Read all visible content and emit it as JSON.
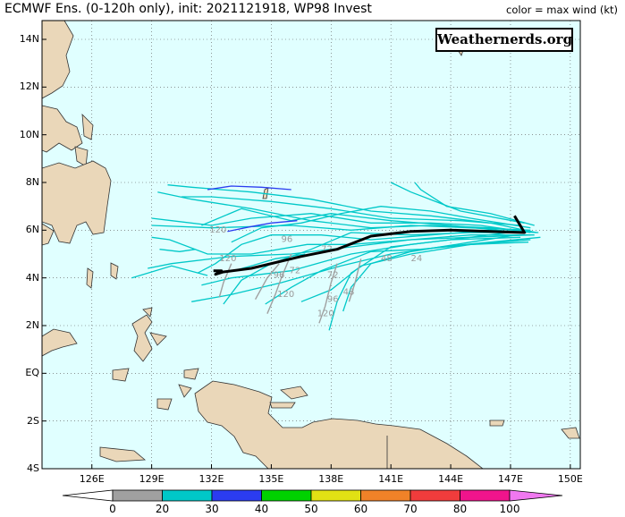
{
  "header": {
    "title": "ECMWF Ens. (0-120h only), init: 2021121918, WP98 Invest",
    "legend_note": "color = max wind (kt)"
  },
  "watermark": "Weathernerds.org",
  "axes": {
    "lat_labels": [
      "14N",
      "12N",
      "10N",
      "8N",
      "6N",
      "4N",
      "2N",
      "EQ",
      "2S",
      "4S"
    ],
    "lon_labels": [
      "126E",
      "129E",
      "132E",
      "135E",
      "138E",
      "141E",
      "144E",
      "147E",
      "150E"
    ]
  },
  "colorbar": {
    "ticks": [
      "0",
      "20",
      "30",
      "40",
      "50",
      "60",
      "70",
      "80",
      "100"
    ],
    "bins": [
      {
        "from": 0,
        "to": 20,
        "color": "#a0a0a0"
      },
      {
        "from": 20,
        "to": 30,
        "color": "#00c8c8"
      },
      {
        "from": 30,
        "to": 40,
        "color": "#2b3cf0"
      },
      {
        "from": 40,
        "to": 50,
        "color": "#00d200"
      },
      {
        "from": 50,
        "to": 60,
        "color": "#e1e114"
      },
      {
        "from": 60,
        "to": 70,
        "color": "#f08228"
      },
      {
        "from": 70,
        "to": 80,
        "color": "#f03c3c"
      },
      {
        "from": 80,
        "to": 100,
        "color": "#f0148c"
      },
      {
        "from": 100,
        "to": 999,
        "color": "#f078f0"
      }
    ]
  },
  "colors": {
    "ocean": "#e0ffff",
    "land": "#ead7b9",
    "mean_track": "#000000",
    "member_low": "#00c8c8",
    "member_mid": "#2b3cf0",
    "member_weak": "#a0a0a0"
  },
  "ensemble_mean_track": [
    [
      147.2,
      6.6
    ],
    [
      147.7,
      5.9
    ],
    [
      146.0,
      5.95
    ],
    [
      144.0,
      6.0
    ],
    [
      142.0,
      5.95
    ],
    [
      140.0,
      5.75
    ],
    [
      138.3,
      5.2
    ],
    [
      136.5,
      4.9
    ],
    [
      134.0,
      4.4
    ],
    [
      132.6,
      4.25
    ],
    [
      132.2,
      4.15
    ],
    [
      132.5,
      4.3
    ],
    [
      132.1,
      4.3
    ]
  ],
  "forecast_hour_labels": [
    {
      "text": "120",
      "lon": 131.9,
      "lat": 5.9
    },
    {
      "text": "96",
      "lon": 135.5,
      "lat": 5.5
    },
    {
      "text": "120",
      "lon": 132.4,
      "lat": 4.7
    },
    {
      "text": "96",
      "lon": 135.1,
      "lat": 4.0
    },
    {
      "text": "72",
      "lon": 135.9,
      "lat": 4.2
    },
    {
      "text": "120",
      "lon": 135.3,
      "lat": 3.2
    },
    {
      "text": "72",
      "lon": 137.8,
      "lat": 4.0
    },
    {
      "text": "48",
      "lon": 138.6,
      "lat": 3.3
    },
    {
      "text": "96",
      "lon": 137.8,
      "lat": 3.0
    },
    {
      "text": "120",
      "lon": 137.3,
      "lat": 2.4
    },
    {
      "text": "24",
      "lon": 142.0,
      "lat": 4.7
    },
    {
      "text": "48",
      "lon": 140.5,
      "lat": 4.7
    },
    {
      "text": "72",
      "lon": 137.5,
      "lat": 5.1
    }
  ],
  "member_tracks": [
    {
      "cat": "low",
      "pts": [
        [
          148.3,
          5.9
        ],
        [
          146,
          6.1
        ],
        [
          143,
          6.2
        ],
        [
          140,
          6.1
        ],
        [
          137,
          6.4
        ],
        [
          134,
          6.9
        ],
        [
          131,
          7.3
        ],
        [
          129.3,
          7.6
        ]
      ]
    },
    {
      "cat": "low",
      "pts": [
        [
          148.3,
          5.9
        ],
        [
          146,
          6.3
        ],
        [
          143,
          6.6
        ],
        [
          140,
          6.8
        ],
        [
          137,
          7.3
        ],
        [
          134,
          7.6
        ],
        [
          131,
          7.8
        ],
        [
          129.8,
          7.9
        ]
      ]
    },
    {
      "cat": "low",
      "pts": [
        [
          148,
          6
        ],
        [
          145,
          6.1
        ],
        [
          142,
          6.2
        ],
        [
          139,
          6.0
        ],
        [
          136,
          6.2
        ],
        [
          132,
          6.1
        ],
        [
          129,
          6.2
        ]
      ]
    },
    {
      "cat": "low",
      "pts": [
        [
          148.2,
          5.8
        ],
        [
          145,
          5.8
        ],
        [
          142,
          5.6
        ],
        [
          139,
          5.3
        ],
        [
          136,
          5.0
        ],
        [
          133,
          4.9
        ],
        [
          130,
          4.6
        ],
        [
          128.8,
          4.4
        ]
      ]
    },
    {
      "cat": "low",
      "pts": [
        [
          148,
          5.8
        ],
        [
          145,
          5.7
        ],
        [
          142,
          5.4
        ],
        [
          139,
          5.0
        ],
        [
          136,
          4.3
        ],
        [
          133,
          4.0
        ],
        [
          131.5,
          3.7
        ]
      ]
    },
    {
      "cat": "low",
      "pts": [
        [
          148,
          5.6
        ],
        [
          145,
          5.4
        ],
        [
          142,
          5.0
        ],
        [
          139.5,
          4.5
        ],
        [
          138,
          3.5
        ],
        [
          136.5,
          3.0
        ]
      ]
    },
    {
      "cat": "low",
      "pts": [
        [
          147.5,
          5.7
        ],
        [
          144,
          5.6
        ],
        [
          141,
          5.3
        ],
        [
          139,
          4.2
        ],
        [
          138.3,
          3.0
        ],
        [
          137.9,
          1.8
        ]
      ]
    },
    {
      "cat": "low",
      "pts": [
        [
          147.8,
          5.9
        ],
        [
          145,
          5.9
        ],
        [
          142,
          5.8
        ],
        [
          139,
          5.9
        ],
        [
          137,
          5.2
        ],
        [
          135,
          4.6
        ],
        [
          133.5,
          3.9
        ],
        [
          132.6,
          2.9
        ]
      ]
    },
    {
      "cat": "low",
      "pts": [
        [
          147.5,
          6.2
        ],
        [
          144.5,
          6.4
        ],
        [
          141,
          6.5
        ],
        [
          138,
          6.9
        ],
        [
          135,
          7.2
        ],
        [
          132,
          7.4
        ],
        [
          130.5,
          7.4
        ]
      ]
    },
    {
      "cat": "low",
      "pts": [
        [
          148,
          6.1
        ],
        [
          145,
          6.5
        ],
        [
          143,
          6.8
        ],
        [
          140.5,
          7.0
        ],
        [
          138.5,
          6.7
        ],
        [
          136.5,
          6.3
        ],
        [
          134.5,
          6.1
        ],
        [
          133,
          5.5
        ]
      ]
    },
    {
      "cat": "low",
      "pts": [
        [
          147.3,
          5.8
        ],
        [
          145,
          5.5
        ],
        [
          142,
          5.1
        ],
        [
          140,
          4.6
        ],
        [
          139,
          3.6
        ],
        [
          138.6,
          2.6
        ]
      ]
    },
    {
      "cat": "low",
      "pts": [
        [
          148.5,
          5.7
        ],
        [
          146,
          5.5
        ],
        [
          143.5,
          5.3
        ],
        [
          141,
          5.0
        ],
        [
          138.5,
          4.5
        ],
        [
          135.5,
          3.8
        ],
        [
          133,
          3.3
        ],
        [
          131,
          3.0
        ]
      ]
    },
    {
      "cat": "low",
      "pts": [
        [
          148,
          5.9
        ],
        [
          145.5,
          6.2
        ],
        [
          143,
          6.3
        ],
        [
          140,
          6.3
        ],
        [
          137,
          6.7
        ],
        [
          134,
          6.5
        ],
        [
          132,
          6.2
        ],
        [
          130,
          6.4
        ],
        [
          129,
          6.5
        ]
      ]
    },
    {
      "cat": "low",
      "pts": [
        [
          147.7,
          6.3
        ],
        [
          144.5,
          6.8
        ],
        [
          142,
          7.6
        ],
        [
          141,
          8.0
        ]
      ]
    },
    {
      "cat": "low",
      "pts": [
        [
          148.4,
          5.9
        ],
        [
          146,
          6.0
        ],
        [
          143,
          5.8
        ],
        [
          140,
          5.6
        ],
        [
          137.5,
          5.8
        ],
        [
          135,
          5.8
        ],
        [
          133.5,
          5.4
        ],
        [
          132.2,
          4.6
        ],
        [
          131.3,
          4.2
        ]
      ]
    },
    {
      "cat": "low",
      "pts": [
        [
          147.9,
          5.5
        ],
        [
          145,
          5.4
        ],
        [
          142.5,
          5.2
        ],
        [
          140,
          5.1
        ],
        [
          137.5,
          4.3
        ],
        [
          136,
          3.6
        ],
        [
          134.7,
          2.9
        ]
      ]
    },
    {
      "cat": "low",
      "pts": [
        [
          148.2,
          6.2
        ],
        [
          146,
          6.7
        ],
        [
          143.8,
          7.0
        ],
        [
          142.5,
          7.7
        ],
        [
          142.2,
          8.0
        ]
      ]
    },
    {
      "cat": "low",
      "pts": [
        [
          147.5,
          5.9
        ],
        [
          144,
          6.2
        ],
        [
          141,
          6.4
        ],
        [
          138,
          6.7
        ],
        [
          136,
          6.4
        ],
        [
          133.5,
          6.9
        ],
        [
          131.5,
          6.2
        ]
      ]
    },
    {
      "cat": "low",
      "pts": [
        [
          147.8,
          6.0
        ],
        [
          145,
          5.7
        ],
        [
          142,
          5.6
        ],
        [
          139,
          5.4
        ],
        [
          136.8,
          5.4
        ],
        [
          134,
          5.0
        ],
        [
          131.8,
          5.0
        ],
        [
          129.9,
          5.6
        ],
        [
          129.0,
          5.7
        ]
      ]
    },
    {
      "cat": "low",
      "pts": [
        [
          131.2,
          5.2
        ],
        [
          130.4,
          5.1
        ],
        [
          129.4,
          5.2
        ]
      ]
    },
    {
      "cat": "low",
      "pts": [
        [
          128.0,
          4.0
        ],
        [
          130.0,
          4.5
        ],
        [
          131.8,
          4.1
        ]
      ]
    },
    {
      "cat": "low",
      "pts": [
        [
          136.7,
          5.0
        ],
        [
          135.2,
          4.8
        ],
        [
          134.0,
          4.5
        ],
        [
          133.1,
          4.3
        ]
      ]
    },
    {
      "cat": "mid",
      "pts": [
        [
          136.0,
          7.7
        ],
        [
          134.5,
          7.8
        ],
        [
          133.0,
          7.85
        ],
        [
          131.8,
          7.7
        ]
      ]
    },
    {
      "cat": "mid",
      "pts": [
        [
          136.3,
          6.4
        ],
        [
          135.0,
          6.3
        ],
        [
          134.0,
          6.15
        ],
        [
          132.8,
          5.95
        ]
      ]
    },
    {
      "cat": "weak",
      "pts": [
        [
          136.0,
          5.0
        ],
        [
          135.5,
          4.0
        ],
        [
          135.2,
          3.3
        ],
        [
          134.8,
          2.5
        ]
      ]
    },
    {
      "cat": "weak",
      "pts": [
        [
          138.3,
          4.6
        ],
        [
          138.0,
          3.8
        ],
        [
          137.7,
          2.8
        ],
        [
          137.4,
          2.1
        ]
      ]
    },
    {
      "cat": "weak",
      "pts": [
        [
          135.4,
          4.6
        ],
        [
          134.8,
          4.0
        ],
        [
          134.2,
          3.1
        ]
      ]
    },
    {
      "cat": "weak",
      "pts": [
        [
          139.5,
          4.8
        ],
        [
          139.2,
          3.8
        ],
        [
          138.9,
          3.0
        ]
      ]
    },
    {
      "cat": "weak",
      "pts": [
        [
          133.0,
          4.6
        ],
        [
          132.6,
          3.8
        ],
        [
          132.4,
          3.2
        ]
      ]
    }
  ]
}
